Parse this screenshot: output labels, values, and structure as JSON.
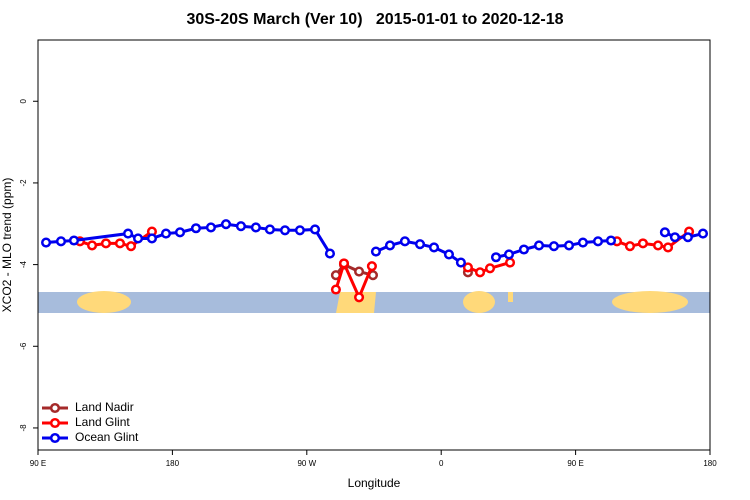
{
  "chart_data": {
    "type": "line",
    "title": "30S-20S March (Ver 10)   2015-01-01 to 2020-12-18",
    "xlabel": "Longitude",
    "ylabel": "XCO2 - MLO trend (ppm)",
    "xlim": [
      90,
      540
    ],
    "ylim": [
      -8.54,
      1.5
    ],
    "xticks": [
      {
        "value": 90,
        "label": "90 E"
      },
      180,
      {
        "value": 270,
        "label": "90 W"
      },
      {
        "value": 360,
        "label": "0"
      },
      {
        "value": 450,
        "label": "90 E"
      },
      {
        "value": 540,
        "label": "180"
      }
    ],
    "yticks": [
      0,
      -2,
      -4,
      -6,
      -8
    ],
    "legend": "bottom-left",
    "series": [
      {
        "name": "Land Nadir",
        "color": "#a52a2a",
        "x": [
          289.5,
          294.9,
          305,
          314.3,
          null,
          377.9
        ],
        "values": [
          -4.26,
          -4.0,
          -4.17,
          -4.26,
          null,
          -4.19
        ]
      },
      {
        "name": "Land Glint",
        "color": "#ff0000",
        "x": [
          118.1,
          126.2,
          135.5,
          144.9,
          152.3,
          166.3,
          null,
          289.5,
          294.9,
          305,
          313.6,
          null,
          377.9,
          386,
          392.7,
          406.1,
          null,
          477.7,
          486.4,
          495.1,
          505.2,
          511.9,
          526
        ],
        "values": [
          -3.43,
          -3.53,
          -3.48,
          -3.48,
          -3.55,
          -3.19,
          null,
          -4.61,
          -3.97,
          -4.8,
          -4.04,
          null,
          -4.07,
          -4.19,
          -4.09,
          -3.95,
          null,
          -3.43,
          -3.55,
          -3.48,
          -3.53,
          -3.58,
          -3.19
        ]
      },
      {
        "name": "Ocean Glint",
        "color": "#0000ee",
        "x": [
          95.4,
          105.4,
          114.1,
          150.3,
          157,
          166.3,
          175.7,
          185.1,
          195.8,
          205.8,
          215.9,
          225.9,
          235.9,
          245.3,
          255.4,
          265.4,
          275.5,
          285.5,
          null,
          316.3,
          325.7,
          335.7,
          345.8,
          355.2,
          365.2,
          373.2,
          null,
          396.7,
          405.4,
          415.4,
          425.5,
          435.5,
          445.6,
          454.9,
          465,
          473.7,
          null,
          509.8,
          516.5,
          525.2,
          535.3
        ],
        "values": [
          -3.46,
          -3.43,
          -3.41,
          -3.24,
          -3.36,
          -3.36,
          -3.24,
          -3.21,
          -3.11,
          -3.09,
          -3.01,
          -3.06,
          -3.09,
          -3.14,
          -3.16,
          -3.16,
          -3.14,
          -3.73,
          null,
          -3.68,
          -3.53,
          -3.43,
          -3.5,
          -3.58,
          -3.75,
          -3.95,
          null,
          -3.82,
          -3.75,
          -3.63,
          -3.53,
          -3.55,
          -3.53,
          -3.46,
          -3.43,
          -3.41,
          null,
          -3.21,
          -3.33,
          -3.33,
          -3.24
        ]
      }
    ]
  }
}
